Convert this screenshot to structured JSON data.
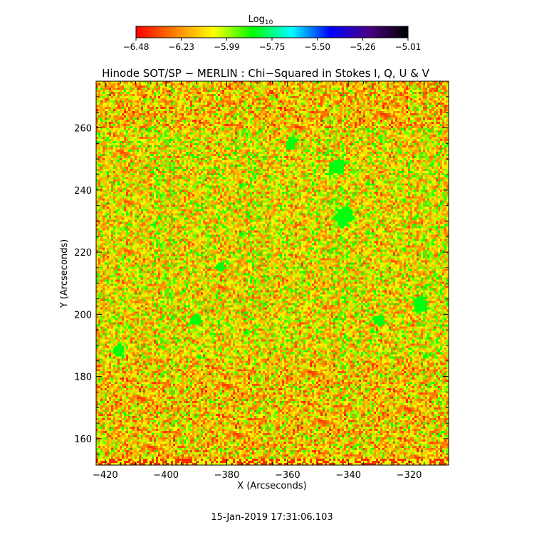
{
  "chart_data": {
    "type": "heatmap",
    "title": "Hinode SOT/SP − MERLIN : Chi−Squared in Stokes I, Q, U & V",
    "xlabel": "X (Arcseconds)",
    "ylabel": "Y (Arcseconds)",
    "xlim": [
      -423,
      -307
    ],
    "ylim": [
      151.5,
      275
    ],
    "x_ticks": [
      -420,
      -400,
      -380,
      -360,
      -340,
      -320
    ],
    "x_tick_labels": [
      "−420",
      "−400",
      "−380",
      "−360",
      "−340",
      "−320"
    ],
    "y_ticks": [
      160,
      180,
      200,
      220,
      240,
      260
    ],
    "y_tick_labels": [
      "160",
      "180",
      "200",
      "220",
      "240",
      "260"
    ],
    "colorbar": {
      "label": "Log",
      "label_subscript": "10",
      "range": [
        -6.48,
        -5.01
      ],
      "tick_labels": [
        "−6.48",
        "−6.23",
        "−5.99",
        "−5.75",
        "−5.50",
        "−5.26",
        "−5.01"
      ],
      "colormap": [
        "#ff0000",
        "#ff7f00",
        "#ffff00",
        "#00ff00",
        "#00ffff",
        "#0000ff",
        "#4b0082",
        "#000000"
      ]
    },
    "value_distribution": {
      "typical_range": [
        -6.45,
        -5.8
      ],
      "mostly": "red/orange/yellow (about -6.4 to -6.0)",
      "green_patches": "scattered, about -5.85"
    }
  },
  "timestamp": "15-Jan-2019 17:31:06.103"
}
